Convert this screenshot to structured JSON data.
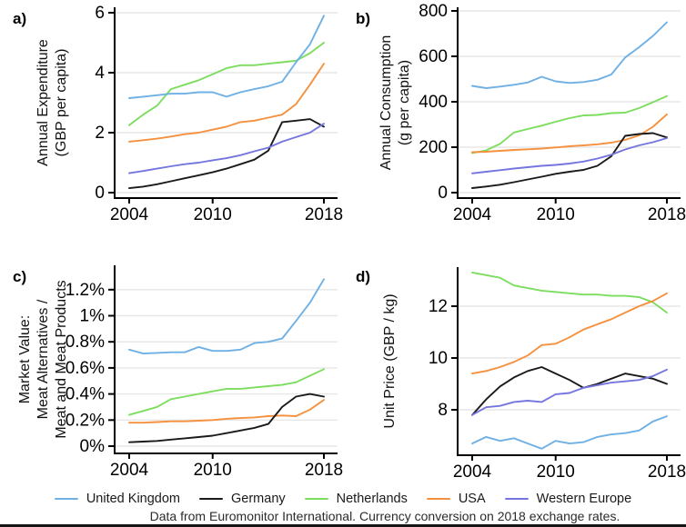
{
  "figure": {
    "caption": "Data from Euromonitor International. Currency conversion on 2018 exchange rates.",
    "legend": {
      "items": [
        {
          "label": "United Kingdom",
          "color": "#6fb0e5"
        },
        {
          "label": "Germany",
          "color": "#1a1a1a"
        },
        {
          "label": "Netherlands",
          "color": "#7ddd5f"
        },
        {
          "label": "USA",
          "color": "#f5913e"
        },
        {
          "label": "Western Europe",
          "color": "#7476de"
        }
      ]
    },
    "colors": {
      "gridline": "#e7e7e7",
      "axis": "#000000",
      "tick_text": "#000000",
      "axis_title_text": "#111111"
    }
  },
  "chart_data": [
    {
      "id": "a",
      "panel_label": "a)",
      "type": "line",
      "ylabel": "Annual Expenditure (GBP per capita)",
      "ylabel_lines": [
        "Annual Expenditure",
        "(GBP per capita)"
      ],
      "x": [
        2004,
        2005,
        2006,
        2007,
        2008,
        2009,
        2010,
        2011,
        2012,
        2013,
        2014,
        2015,
        2016,
        2017,
        2018
      ],
      "xticks": [
        2004,
        2010,
        2018
      ],
      "yticks": [
        0,
        2,
        4,
        6
      ],
      "ytick_labels": [
        "0",
        "2",
        "4",
        "6"
      ],
      "ylim": [
        -0.2,
        6.15
      ],
      "grid": true,
      "legend_position": "bottom",
      "series": [
        {
          "name": "Netherlands",
          "color": "#7ddd5f",
          "values": [
            2.25,
            2.6,
            2.9,
            3.45,
            3.6,
            3.75,
            3.95,
            4.15,
            4.25,
            4.25,
            4.3,
            4.35,
            4.4,
            4.65,
            5.0
          ]
        },
        {
          "name": "USA",
          "color": "#f5913e",
          "values": [
            1.7,
            1.75,
            1.8,
            1.87,
            1.95,
            2.0,
            2.1,
            2.2,
            2.35,
            2.4,
            2.5,
            2.6,
            2.95,
            3.6,
            4.3
          ]
        },
        {
          "name": "Germany",
          "color": "#1a1a1a",
          "values": [
            0.15,
            0.2,
            0.28,
            0.38,
            0.48,
            0.58,
            0.68,
            0.8,
            0.95,
            1.1,
            1.4,
            2.35,
            2.4,
            2.45,
            2.2
          ]
        },
        {
          "name": "Western Europe",
          "color": "#7476de",
          "values": [
            0.65,
            0.72,
            0.8,
            0.88,
            0.95,
            1.0,
            1.08,
            1.15,
            1.25,
            1.38,
            1.5,
            1.7,
            1.85,
            2.0,
            2.3
          ]
        },
        {
          "name": "United Kingdom",
          "color": "#6fb0e5",
          "values": [
            3.15,
            3.2,
            3.25,
            3.3,
            3.3,
            3.35,
            3.35,
            3.2,
            3.35,
            3.45,
            3.55,
            3.7,
            4.35,
            4.95,
            5.9
          ]
        }
      ]
    },
    {
      "id": "b",
      "panel_label": "b)",
      "type": "line",
      "ylabel": "Annual Consumption (g per capita)",
      "ylabel_lines": [
        "Annual Consumption",
        "(g per capita)"
      ],
      "x": [
        2004,
        2005,
        2006,
        2007,
        2008,
        2009,
        2010,
        2011,
        2012,
        2013,
        2014,
        2015,
        2016,
        2017,
        2018
      ],
      "xticks": [
        2004,
        2010,
        2018
      ],
      "yticks": [
        0,
        200,
        400,
        600,
        800
      ],
      "ytick_labels": [
        "0",
        "200",
        "400",
        "600",
        "800"
      ],
      "ylim": [
        -25,
        815
      ],
      "grid": true,
      "series": [
        {
          "name": "Netherlands",
          "color": "#7ddd5f",
          "values": [
            174,
            186,
            215,
            265,
            280,
            295,
            312,
            328,
            340,
            342,
            350,
            352,
            372,
            398,
            425
          ]
        },
        {
          "name": "USA",
          "color": "#f5913e",
          "values": [
            178,
            180,
            184,
            188,
            191,
            194,
            199,
            204,
            208,
            213,
            220,
            232,
            252,
            290,
            345
          ]
        },
        {
          "name": "Germany",
          "color": "#1a1a1a",
          "values": [
            20,
            27,
            35,
            46,
            58,
            70,
            83,
            92,
            100,
            118,
            160,
            250,
            258,
            262,
            243
          ]
        },
        {
          "name": "Western Europe",
          "color": "#7476de",
          "values": [
            85,
            92,
            99,
            106,
            112,
            118,
            122,
            128,
            137,
            150,
            167,
            190,
            208,
            222,
            240
          ]
        },
        {
          "name": "United Kingdom",
          "color": "#6fb0e5",
          "values": [
            470,
            460,
            467,
            475,
            485,
            510,
            490,
            483,
            487,
            497,
            520,
            595,
            640,
            690,
            750
          ]
        }
      ]
    },
    {
      "id": "c",
      "panel_label": "c)",
      "type": "line",
      "ylabel": "Market Value: Meat Alternatives / Meat and Meat Products",
      "ylabel_lines": [
        "Market Value:",
        "Meat Alternatives /",
        "Meat and Meat Products"
      ],
      "x": [
        2004,
        2005,
        2006,
        2007,
        2008,
        2009,
        2010,
        2011,
        2012,
        2013,
        2014,
        2015,
        2016,
        2017,
        2018
      ],
      "xticks": [
        2004,
        2010,
        2018
      ],
      "yticks": [
        0,
        0.2,
        0.4,
        0.6,
        0.8,
        1.0,
        1.2
      ],
      "ytick_labels": [
        "0%",
        "0.2%",
        "0.4%",
        "0.6%",
        "0.8%",
        "1%",
        "1.2%"
      ],
      "ylim": [
        -0.05,
        1.35
      ],
      "grid": true,
      "series": [
        {
          "name": "Netherlands",
          "color": "#7ddd5f",
          "values": [
            0.24,
            0.27,
            0.3,
            0.36,
            0.38,
            0.4,
            0.42,
            0.44,
            0.44,
            0.45,
            0.46,
            0.47,
            0.49,
            0.54,
            0.59
          ]
        },
        {
          "name": "USA",
          "color": "#f5913e",
          "values": [
            0.18,
            0.18,
            0.185,
            0.19,
            0.19,
            0.195,
            0.2,
            0.21,
            0.215,
            0.22,
            0.23,
            0.235,
            0.23,
            0.28,
            0.355
          ]
        },
        {
          "name": "Germany",
          "color": "#1a1a1a",
          "values": [
            0.03,
            0.035,
            0.04,
            0.05,
            0.06,
            0.07,
            0.08,
            0.1,
            0.12,
            0.14,
            0.17,
            0.3,
            0.38,
            0.4,
            0.38
          ]
        },
        {
          "name": "United Kingdom",
          "color": "#6fb0e5",
          "values": [
            0.74,
            0.71,
            0.715,
            0.72,
            0.72,
            0.76,
            0.73,
            0.73,
            0.74,
            0.79,
            0.8,
            0.825,
            0.96,
            1.1,
            1.28
          ]
        }
      ]
    },
    {
      "id": "d",
      "panel_label": "d)",
      "type": "line",
      "ylabel": "Unit Price (GBP / kg)",
      "ylabel_lines": [
        "Unit Price (GBP / kg)"
      ],
      "x": [
        2004,
        2005,
        2006,
        2007,
        2008,
        2009,
        2010,
        2011,
        2012,
        2013,
        2014,
        2015,
        2016,
        2017,
        2018
      ],
      "xticks": [
        2004,
        2010,
        2018
      ],
      "yticks": [
        8,
        10,
        12
      ],
      "ytick_labels": [
        "8",
        "10",
        "12"
      ],
      "ylim": [
        6.2,
        13.5
      ],
      "grid": true,
      "series": [
        {
          "name": "Netherlands",
          "color": "#7ddd5f",
          "values": [
            13.3,
            13.2,
            13.1,
            12.8,
            12.7,
            12.6,
            12.55,
            12.5,
            12.45,
            12.45,
            12.4,
            12.4,
            12.35,
            12.15,
            11.75
          ]
        },
        {
          "name": "USA",
          "color": "#f5913e",
          "values": [
            9.4,
            9.5,
            9.65,
            9.85,
            10.1,
            10.5,
            10.55,
            10.8,
            11.1,
            11.3,
            11.5,
            11.75,
            12.0,
            12.2,
            12.5
          ]
        },
        {
          "name": "Germany",
          "color": "#1a1a1a",
          "values": [
            7.8,
            8.4,
            8.9,
            9.25,
            9.5,
            9.65,
            9.4,
            9.15,
            8.85,
            9.0,
            9.2,
            9.4,
            9.3,
            9.2,
            9.0
          ]
        },
        {
          "name": "Western Europe",
          "color": "#7476de",
          "values": [
            7.8,
            8.1,
            8.15,
            8.3,
            8.35,
            8.3,
            8.6,
            8.65,
            8.85,
            8.95,
            9.05,
            9.1,
            9.15,
            9.3,
            9.55
          ]
        },
        {
          "name": "United Kingdom",
          "color": "#6fb0e5",
          "values": [
            6.7,
            6.95,
            6.8,
            6.9,
            6.7,
            6.5,
            6.8,
            6.7,
            6.75,
            6.95,
            7.05,
            7.1,
            7.2,
            7.55,
            7.75
          ]
        }
      ]
    }
  ]
}
